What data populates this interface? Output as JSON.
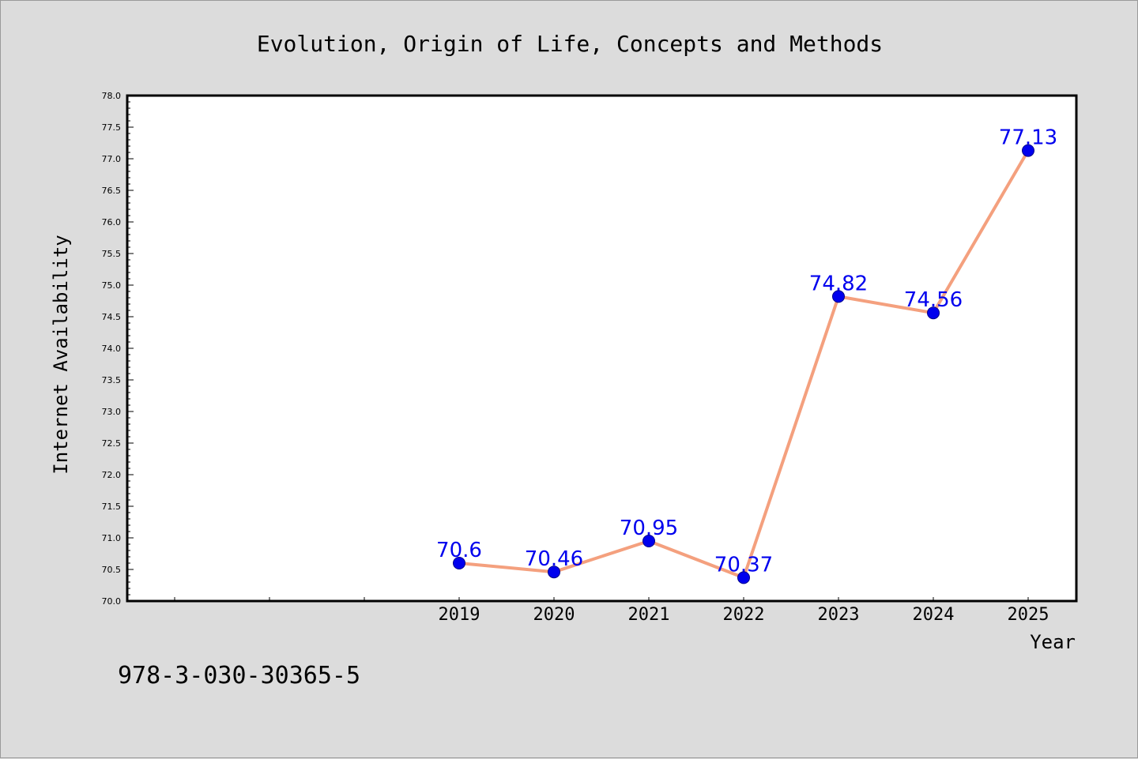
{
  "chart_data": {
    "type": "line",
    "title": "Evolution, Origin of Life, Concepts and Methods",
    "xlabel": "Year",
    "ylabel": "Internet Availability",
    "x": [
      "2019",
      "2020",
      "2021",
      "2022",
      "2023",
      "2024",
      "2025"
    ],
    "series": [
      {
        "values": [
          70.6,
          70.46,
          70.95,
          70.37,
          74.82,
          74.56,
          77.13
        ],
        "labels": [
          "70.6",
          "70.46",
          "70.95",
          "70.37",
          "74.82",
          "74.56",
          "77.13"
        ]
      }
    ],
    "ylim": [
      70.0,
      78.0
    ],
    "yticks": [
      "70.0",
      "70.5",
      "71.0",
      "71.5",
      "72.0",
      "72.5",
      "73.0",
      "73.5",
      "74.0",
      "74.5",
      "75.0",
      "75.5",
      "76.0",
      "76.5",
      "77.0",
      "77.5",
      "78.0"
    ],
    "grid": false,
    "legend": "none",
    "colors": {
      "line": "#f4a07e",
      "marker": "#0000ee",
      "marker_edge": "#00008b",
      "data_label": "#0000ee",
      "background": "#dcdcdc",
      "plot_background": "#ffffff"
    }
  },
  "footer": {
    "text": "978-3-030-30365-5"
  }
}
